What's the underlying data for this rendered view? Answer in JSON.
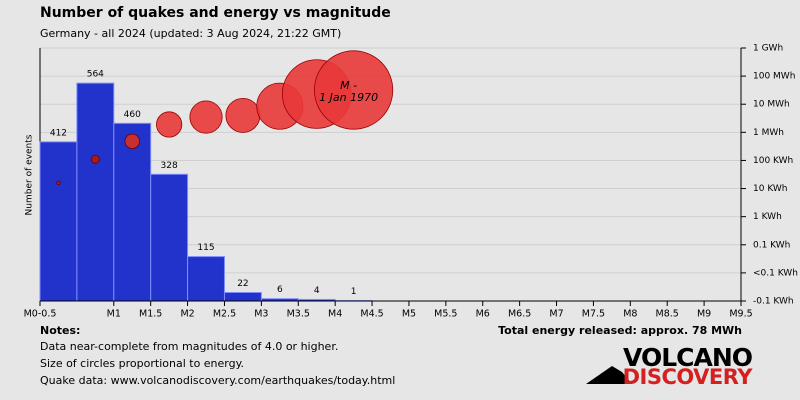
{
  "chart_data": {
    "type": "histogram",
    "title": "Number of quakes and energy vs magnitude",
    "subtitle": "Germany - all 2024 (updated: 3 Aug 2024, 21:22 GMT)",
    "ylabel": "Number of events",
    "bins": [
      0,
      0.5,
      1,
      1.5,
      2,
      2.5,
      3,
      3.5,
      4,
      4.5
    ],
    "values": [
      412,
      564,
      460,
      328,
      115,
      22,
      6,
      4,
      1
    ],
    "color": "#2233cc",
    "ylim": [
      0,
      655
    ],
    "xlim": [
      0,
      9.5
    ],
    "xticks": [
      {
        "value": 0,
        "label": "M0-0.5"
      },
      {
        "value": 1,
        "label": "M1"
      },
      {
        "value": 1.5,
        "label": "M1.5"
      },
      {
        "value": 2,
        "label": "M2"
      },
      {
        "value": 2.5,
        "label": "M2.5"
      },
      {
        "value": 3,
        "label": "M3"
      },
      {
        "value": 3.5,
        "label": "M3.5"
      },
      {
        "value": 4,
        "label": "M4"
      },
      {
        "value": 4.5,
        "label": "M4.5"
      },
      {
        "value": 5,
        "label": "M5"
      },
      {
        "value": 5.5,
        "label": "M5.5"
      },
      {
        "value": 6,
        "label": "M6"
      },
      {
        "value": 6.5,
        "label": "M6.5"
      },
      {
        "value": 7,
        "label": "M7"
      },
      {
        "value": 7.5,
        "label": "M7.5"
      },
      {
        "value": 8,
        "label": "M8"
      },
      {
        "value": 8.5,
        "label": "M8.5"
      },
      {
        "value": 9,
        "label": "M9"
      },
      {
        "value": 9.5,
        "label": "M9.5"
      }
    ],
    "y2log": true,
    "y2lim": [
      1,
      1000000000
    ],
    "y2ticks": [
      {
        "value": 1000000000,
        "label": "1 GWh"
      },
      {
        "value": 100000000,
        "label": "100 MWh"
      },
      {
        "value": 10000000,
        "label": "10 MWh"
      },
      {
        "value": 1000000,
        "label": "1 MWh"
      },
      {
        "value": 100000,
        "label": "100 KWh"
      },
      {
        "value": 10000,
        "label": "10 KWh"
      },
      {
        "value": 1000,
        "label": "1 KWh"
      },
      {
        "value": 100,
        "label": "0.1 KWh"
      },
      {
        "value": 10,
        "label": "<0.1 KWh"
      },
      {
        "value": 1,
        "label": "-0.1 KWh"
      }
    ],
    "grid": true,
    "energy": {
      "axis": "y2",
      "values": [
        16000,
        110000,
        480000,
        1900000,
        3500000,
        4000000,
        8500000,
        23000000,
        32000000
      ],
      "colors": [
        "#b01818",
        "#b01818",
        "#c83030",
        "#e83838",
        "#e83838",
        "#e83838",
        "#e83838",
        "#e83838",
        "#e83838"
      ]
    },
    "annotation": [
      "M -",
      "1 Jan 1970"
    ],
    "total": "Total energy released: approx. 78 MWh"
  },
  "notes": {
    "title": "Notes:",
    "lines": [
      "Data near-complete from magnitudes of 4.0 or higher.",
      "Size of circles proportional to energy.",
      "Quake data: www.volcanodiscovery.com/earthquakes/today.html"
    ]
  },
  "logo": [
    "VOLCANO",
    "DISCOVERY"
  ]
}
